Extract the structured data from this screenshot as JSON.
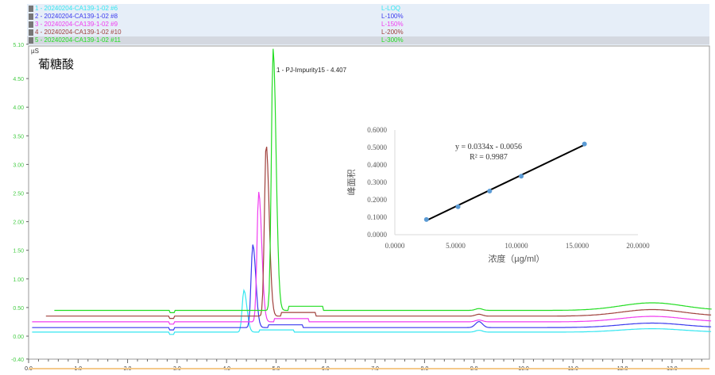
{
  "legend": [
    {
      "label": "1 - 20240204-CA139-1-02 #6",
      "level": "L-LOQ",
      "color": "#33e6f0"
    },
    {
      "label": "2 - 20240204-CA139-1-02 #8",
      "level": "L-100%",
      "color": "#3a3aee"
    },
    {
      "label": "3 - 20240204-CA139-1-02 #9",
      "level": "L-150%",
      "color": "#f03cf0"
    },
    {
      "label": "4 - 20240204-CA139-1-02 #10",
      "level": "L-200%",
      "color": "#a0403c"
    },
    {
      "label": "5 - 20240204-CA139-1-02 #11",
      "level": "L-300%",
      "color": "#22dd22"
    }
  ],
  "chart_data": [
    {
      "type": "line",
      "title": "葡糖酸",
      "ylabel": "µS",
      "xlim": [
        0,
        13.8
      ],
      "ylim": [
        -0.4,
        5.1
      ],
      "xticks": [
        "0.0",
        "1.0",
        "2.0",
        "3.0",
        "4.0",
        "5.0",
        "6.0",
        "7.0",
        "8.0",
        "9.0",
        "10.0",
        "11.0",
        "12.0",
        "13.0"
      ],
      "yticks": [
        "5.10",
        "4.50",
        "4.00",
        "3.50",
        "3.00",
        "2.50",
        "2.00",
        "1.50",
        "1.00",
        "0.50",
        "0.00",
        "-0.40"
      ],
      "annotation": "1 - PJ-Impurity15 - 4.407",
      "series": [
        {
          "name": "1 - 20240204-CA139-1-02 #6",
          "baseline": 0.07,
          "peak_time": 4.35,
          "peak_height": 0.73
        },
        {
          "name": "2 - 20240204-CA139-1-02 #8",
          "baseline": 0.15,
          "peak_time": 4.53,
          "peak_height": 1.45
        },
        {
          "name": "3 - 20240204-CA139-1-02 #9",
          "baseline": 0.25,
          "peak_time": 4.65,
          "peak_height": 2.27
        },
        {
          "name": "4 - 20240204-CA139-1-02 #10",
          "baseline": 0.35,
          "peak_time": 4.8,
          "peak_height": 3.0
        },
        {
          "name": "5 - 20240204-CA139-1-02 #11",
          "baseline": 0.45,
          "peak_time": 4.94,
          "peak_height": 4.57
        }
      ]
    },
    {
      "type": "scatter",
      "xlabel": "浓度（µg/ml）",
      "ylabel": "峰面积",
      "xlim": [
        0,
        20
      ],
      "ylim": [
        0,
        0.6
      ],
      "xticks": [
        "0.0000",
        "5.0000",
        "10.0000",
        "15.0000",
        "20.0000"
      ],
      "yticks": [
        "0.0000",
        "0.1000",
        "0.2000",
        "0.3000",
        "0.4000",
        "0.5000",
        "0.6000"
      ],
      "x": [
        2.6,
        5.2,
        7.8,
        10.4,
        15.6
      ],
      "y": [
        0.087,
        0.16,
        0.25,
        0.335,
        0.52
      ],
      "trendline": {
        "slope": 0.0334,
        "intercept": -0.0056
      },
      "equation": "y = 0.0334x - 0.0056",
      "r2": "R² = 0.9987",
      "point_color": "#5b9bd5"
    }
  ]
}
